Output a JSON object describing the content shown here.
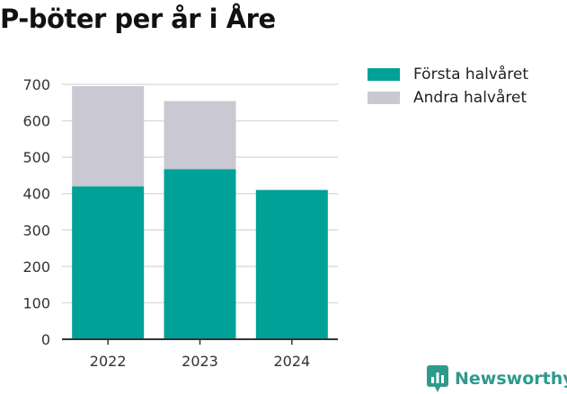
{
  "title": "P-böter per år i Åre",
  "colors": {
    "first_half": "#00a197",
    "second_half": "#c9c8d3",
    "grid": "#dddddd",
    "axis": "#333333",
    "brand": "#2e9a8c"
  },
  "brand": {
    "name": "Newsworthy",
    "icon": "newsworthy-logo-icon"
  },
  "chart_data": {
    "type": "bar",
    "stacked": true,
    "categories": [
      "2022",
      "2023",
      "2024"
    ],
    "series": [
      {
        "name": "Första halvåret",
        "values": [
          420,
          467,
          410
        ]
      },
      {
        "name": "Andra halvåret",
        "values": [
          275,
          187,
          0
        ]
      }
    ],
    "yticks": [
      0,
      100,
      200,
      300,
      400,
      500,
      600,
      700
    ],
    "ylim": [
      0,
      700
    ],
    "grid": true,
    "legend_position": "top-right",
    "title": "P-böter per år i Åre",
    "xlabel": "",
    "ylabel": ""
  }
}
